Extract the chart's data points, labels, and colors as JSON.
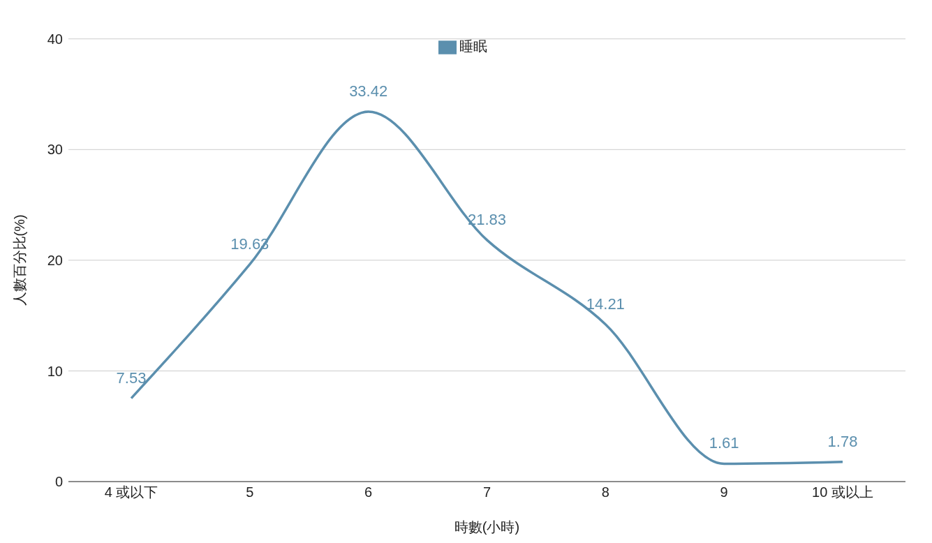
{
  "chart_data": {
    "type": "line",
    "xlabel": "時數(小時)",
    "ylabel": "人數百分比(%)",
    "categories": [
      "4 或以下",
      "5",
      "6",
      "7",
      "8",
      "9",
      "10 或以上"
    ],
    "series": [
      {
        "name": "睡眠",
        "color": "#5b8fae",
        "values": [
          7.53,
          19.63,
          33.42,
          21.83,
          14.21,
          1.61,
          1.78
        ]
      }
    ],
    "ylim": [
      0,
      40
    ],
    "yticks": [
      0,
      10,
      20,
      30,
      40
    ],
    "grid": "y",
    "legend": "top",
    "data_labels": true,
    "marker": "none",
    "line_style": "solid"
  }
}
